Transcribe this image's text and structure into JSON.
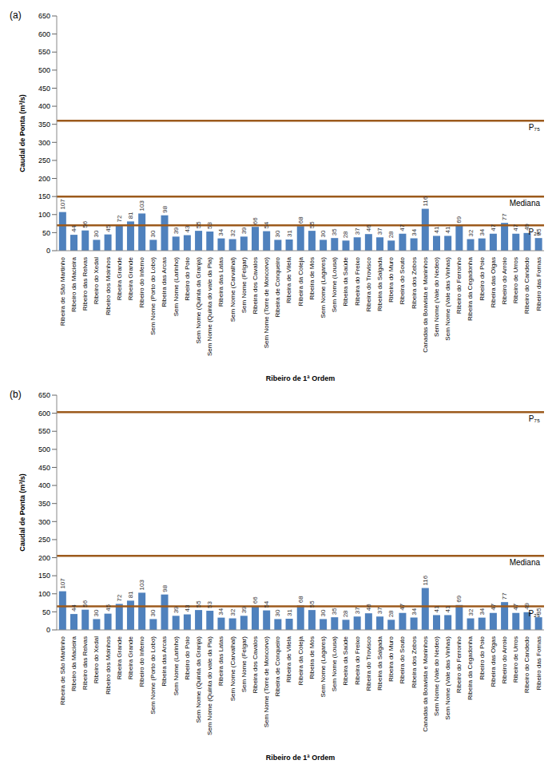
{
  "chart_data": [
    {
      "type": "bar",
      "title": "(a)",
      "x_label": "Ribeiro de 1ª Ordem",
      "y_label": "Caudal de Ponta (m³/s)",
      "categories": [
        "Ribeira de São Martinho",
        "Ribeiro da Macieira",
        "Ribeiro das Relvas",
        "Ribeiro do Xedal",
        "Ribeiro dos Moinhos",
        "Ribeira Grande",
        "Ribeira Grande",
        "Ribeiro do Inferno",
        "Sem Nome (Porto do Lobo)",
        "Ribeira das Arcas",
        "Sem Nome (Larinho)",
        "Ribeiro do Poio",
        "Sem Nome (Quinta da Granja)",
        "Sem Nome (Quinta do vale da Pia)",
        "Ribeira das Latas",
        "Sem Nome (Carvalhal)",
        "Sem Nome (Felgar)",
        "Ribeira dos Cavalos",
        "Sem Nome (Torre de Moncorvo)",
        "Ribeira de Conqueiro",
        "Ribeira de Vilela",
        "Ribeira da Coleja",
        "Ribeira de Mós",
        "Sem Nome (Lagares)",
        "Sem Nome (Lousa)",
        "Ribeira da Saúde",
        "Ribeira do Freixo",
        "Ribeira do Trovisco",
        "Ribeira da Salgada",
        "Ribeira do Muro",
        "Ribeira do Souto",
        "Ribeira dos Zebos",
        "Canadas da Boavista e Maninhos",
        "Sem Nome (Vale do Nedeo)",
        "Sem Nome (Vale das Vinhas)",
        "Ribeiro do Ferronho",
        "Ribeira da Cegadonha",
        "Ribeiro do Poio",
        "Ribeira das Olgas",
        "Ribeiro do Arroio",
        "Ribeiro de Urros",
        "Ribeiro do Candedo",
        "Ribeiro das Fornas"
      ],
      "values": [
        107,
        44,
        56,
        30,
        45,
        72,
        81,
        103,
        30,
        98,
        39,
        43,
        55,
        53,
        34,
        32,
        39,
        66,
        54,
        30,
        31,
        68,
        55,
        30,
        35,
        28,
        37,
        46,
        37,
        28,
        47,
        34,
        116,
        41,
        41,
        69,
        32,
        34,
        47,
        77,
        47,
        49,
        35
      ],
      "color": "#4f81bd",
      "ylim": [
        0,
        650
      ],
      "yticks": [
        0,
        50,
        100,
        150,
        200,
        250,
        300,
        350,
        400,
        450,
        500,
        550,
        600,
        650
      ],
      "grid": false,
      "data_labels": true,
      "reference_lines": [
        {
          "label": "P₇₅",
          "value": 360,
          "color": "#9c5a1c"
        },
        {
          "label": "Mediana",
          "value": 150,
          "color": "#9c5a1c"
        },
        {
          "label": "P₂₅",
          "value": 70,
          "color": "#9c5a1c"
        }
      ]
    },
    {
      "type": "bar",
      "title": "(b)",
      "x_label": "Ribeiro de 1ª Ordem",
      "y_label": "Caudal de Ponta (m³/s)",
      "categories": [
        "Ribeira de São Martinho",
        "Ribeiro da Macieira",
        "Ribeiro das Relvas",
        "Ribeiro do Xedal",
        "Ribeiro dos Moinhos",
        "Ribeira Grande",
        "Ribeira Grande",
        "Ribeiro do Inferno",
        "Sem Nome (Porto do Lobo)",
        "Ribeira das Arcas",
        "Sem Nome (Larinho)",
        "Ribeiro do Poio",
        "Sem Nome (Quinta da Granja)",
        "Sem Nome (Quinta do vale da Pia)",
        "Ribeira das Latas",
        "Sem Nome (Carvalhal)",
        "Sem Nome (Felgar)",
        "Ribeira dos Cavalos",
        "Sem Nome (Torre de Moncorvo)",
        "Ribeira de Conqueiro",
        "Ribeira de Vilela",
        "Ribeira da Coleja",
        "Ribeira de Mós",
        "Sem Nome (Lagares)",
        "Sem Nome (Lousa)",
        "Ribeira da Saúde",
        "Ribeira do Freixo",
        "Ribeira do Trovisco",
        "Ribeira da Salgada",
        "Ribeira do Muro",
        "Ribeira do Souto",
        "Ribeira dos Zebos",
        "Canadas da Boavista e Maninhos",
        "Sem Nome (Vale do Nedeo)",
        "Sem Nome (Vale das Vinhas)",
        "Ribeiro do Ferronho",
        "Ribeira da Cegadonha",
        "Ribeiro do Poio",
        "Ribeira das Olgas",
        "Ribeiro do Arroio",
        "Ribeiro de Urros",
        "Ribeiro do Candedo",
        "Ribeiro das Fornas"
      ],
      "values": [
        107,
        44,
        56,
        30,
        45,
        72,
        81,
        103,
        30,
        98,
        39,
        43,
        55,
        53,
        34,
        32,
        39,
        66,
        54,
        30,
        31,
        68,
        55,
        30,
        35,
        28,
        37,
        46,
        37,
        28,
        47,
        34,
        116,
        41,
        41,
        69,
        32,
        34,
        47,
        77,
        47,
        49,
        35
      ],
      "color": "#4f81bd",
      "ylim": [
        0,
        650
      ],
      "yticks": [
        0,
        50,
        100,
        150,
        200,
        250,
        300,
        350,
        400,
        450,
        500,
        550,
        600,
        650
      ],
      "grid": false,
      "data_labels": true,
      "reference_lines": [
        {
          "label": "P₇₅",
          "value": 603,
          "color": "#9c5a1c"
        },
        {
          "label": "Mediana",
          "value": 205,
          "color": "#9c5a1c"
        },
        {
          "label": "P₂₅",
          "value": 65,
          "color": "#9c5a1c"
        }
      ]
    }
  ]
}
